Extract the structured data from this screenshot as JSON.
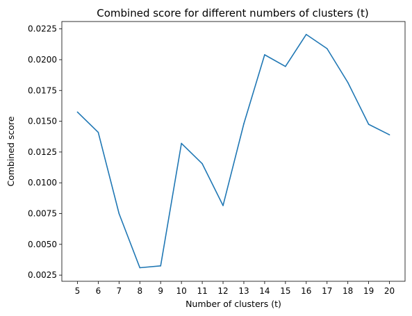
{
  "chart_data": {
    "type": "line",
    "title": "Combined score for different numbers of clusters (t)",
    "xlabel": "Number of clusters (t)",
    "ylabel": "Combined score",
    "x": [
      5,
      6,
      7,
      8,
      9,
      10,
      11,
      12,
      13,
      14,
      15,
      16,
      17,
      18,
      19,
      20
    ],
    "series": [
      {
        "values": [
          0.01575,
          0.0141,
          0.0075,
          0.0031,
          0.00325,
          0.0132,
          0.01155,
          0.00815,
          0.0148,
          0.0204,
          0.01945,
          0.02205,
          0.0209,
          0.01815,
          0.01475,
          0.0139
        ],
        "color": "#1f77b4"
      }
    ],
    "xticks": [
      "5",
      "6",
      "7",
      "8",
      "9",
      "10",
      "11",
      "12",
      "13",
      "14",
      "15",
      "16",
      "17",
      "18",
      "19",
      "20"
    ],
    "yticks": [
      "0.0025",
      "0.0050",
      "0.0075",
      "0.0100",
      "0.0125",
      "0.0150",
      "0.0175",
      "0.0200",
      "0.0225"
    ],
    "xlim": [
      4.25,
      20.75
    ],
    "ylim": [
      0.002,
      0.0231
    ],
    "grid": false,
    "legend": false
  }
}
